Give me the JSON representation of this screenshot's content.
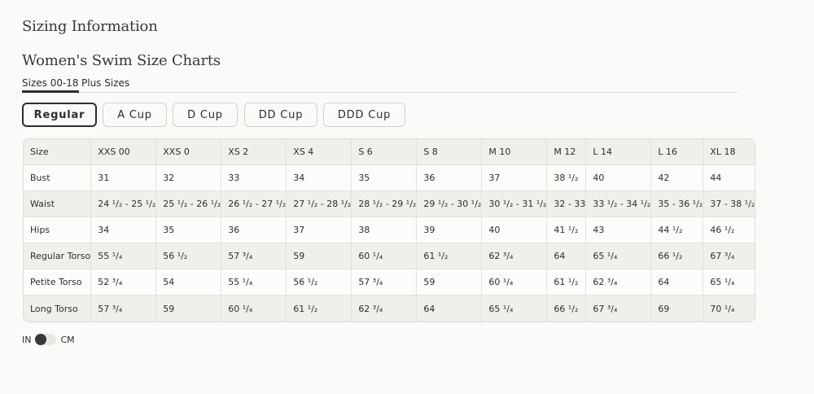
{
  "page_title": "Sizing Information",
  "chart_title": "Women's Swim Size Charts",
  "tabs": [
    {
      "label": "Sizes 00-18",
      "active": true
    },
    {
      "label": "Plus Sizes",
      "active": false
    }
  ],
  "cup_filters": [
    {
      "label": "Regular",
      "active": true
    },
    {
      "label": "A Cup"
    },
    {
      "label": "D Cup"
    },
    {
      "label": "DD Cup"
    },
    {
      "label": "DDD Cup"
    }
  ],
  "table": {
    "header": [
      "Size",
      "XXS 00",
      "XXS 0",
      "XS 2",
      "XS 4",
      "S 6",
      "S 8",
      "M 10",
      "M 12",
      "L 14",
      "L 16",
      "XL 18"
    ],
    "rows": [
      [
        "Bust",
        "31",
        "32",
        "33",
        "34",
        "35",
        "36",
        "37",
        "38 ¹/₂",
        "40",
        "42",
        "44"
      ],
      [
        "Waist",
        "24 ¹/₂ - 25 ¹/₂",
        "25 ¹/₂ - 26 ¹/₂",
        "26 ¹/₂ - 27 ¹/₂",
        "27 ¹/₂ - 28 ¹/₂",
        "28 ¹/₂ - 29 ¹/₂",
        "29 ¹/₂ - 30 ¹/₂",
        "30 ¹/₂ - 31 ¹/₂",
        "32 - 33",
        "33 ¹/₂ - 34 ¹/₂",
        "35 - 36 ¹/₂",
        "37 - 38 ¹/₂"
      ],
      [
        "Hips",
        "34",
        "35",
        "36",
        "37",
        "38",
        "39",
        "40",
        "41 ¹/₂",
        "43",
        "44 ¹/₂",
        "46 ¹/₂"
      ],
      [
        "Regular Torso",
        "55 ¹/₄",
        "56 ¹/₂",
        "57 ³/₄",
        "59",
        "60 ¹/₄",
        "61 ¹/₂",
        "62 ³/₄",
        "64",
        "65 ¹/₄",
        "66 ¹/₂",
        "67 ³/₄"
      ],
      [
        "Petite Torso",
        "52 ³/₄",
        "54",
        "55 ¹/₄",
        "56 ¹/₂",
        "57 ³/₄",
        "59",
        "60 ¹/₄",
        "61 ¹/₂",
        "62 ³/₄",
        "64",
        "65 ¹/₄"
      ],
      [
        "Long Torso",
        "57 ³/₄",
        "59",
        "60 ¹/₄",
        "61 ¹/₂",
        "62 ³/₄",
        "64",
        "65 ¹/₄",
        "66 ¹/₂",
        "67 ³/₄",
        "69",
        "70 ¹/₄"
      ]
    ]
  },
  "unit_toggle": {
    "left_label": "IN",
    "right_label": "CM",
    "selected": "IN"
  }
}
